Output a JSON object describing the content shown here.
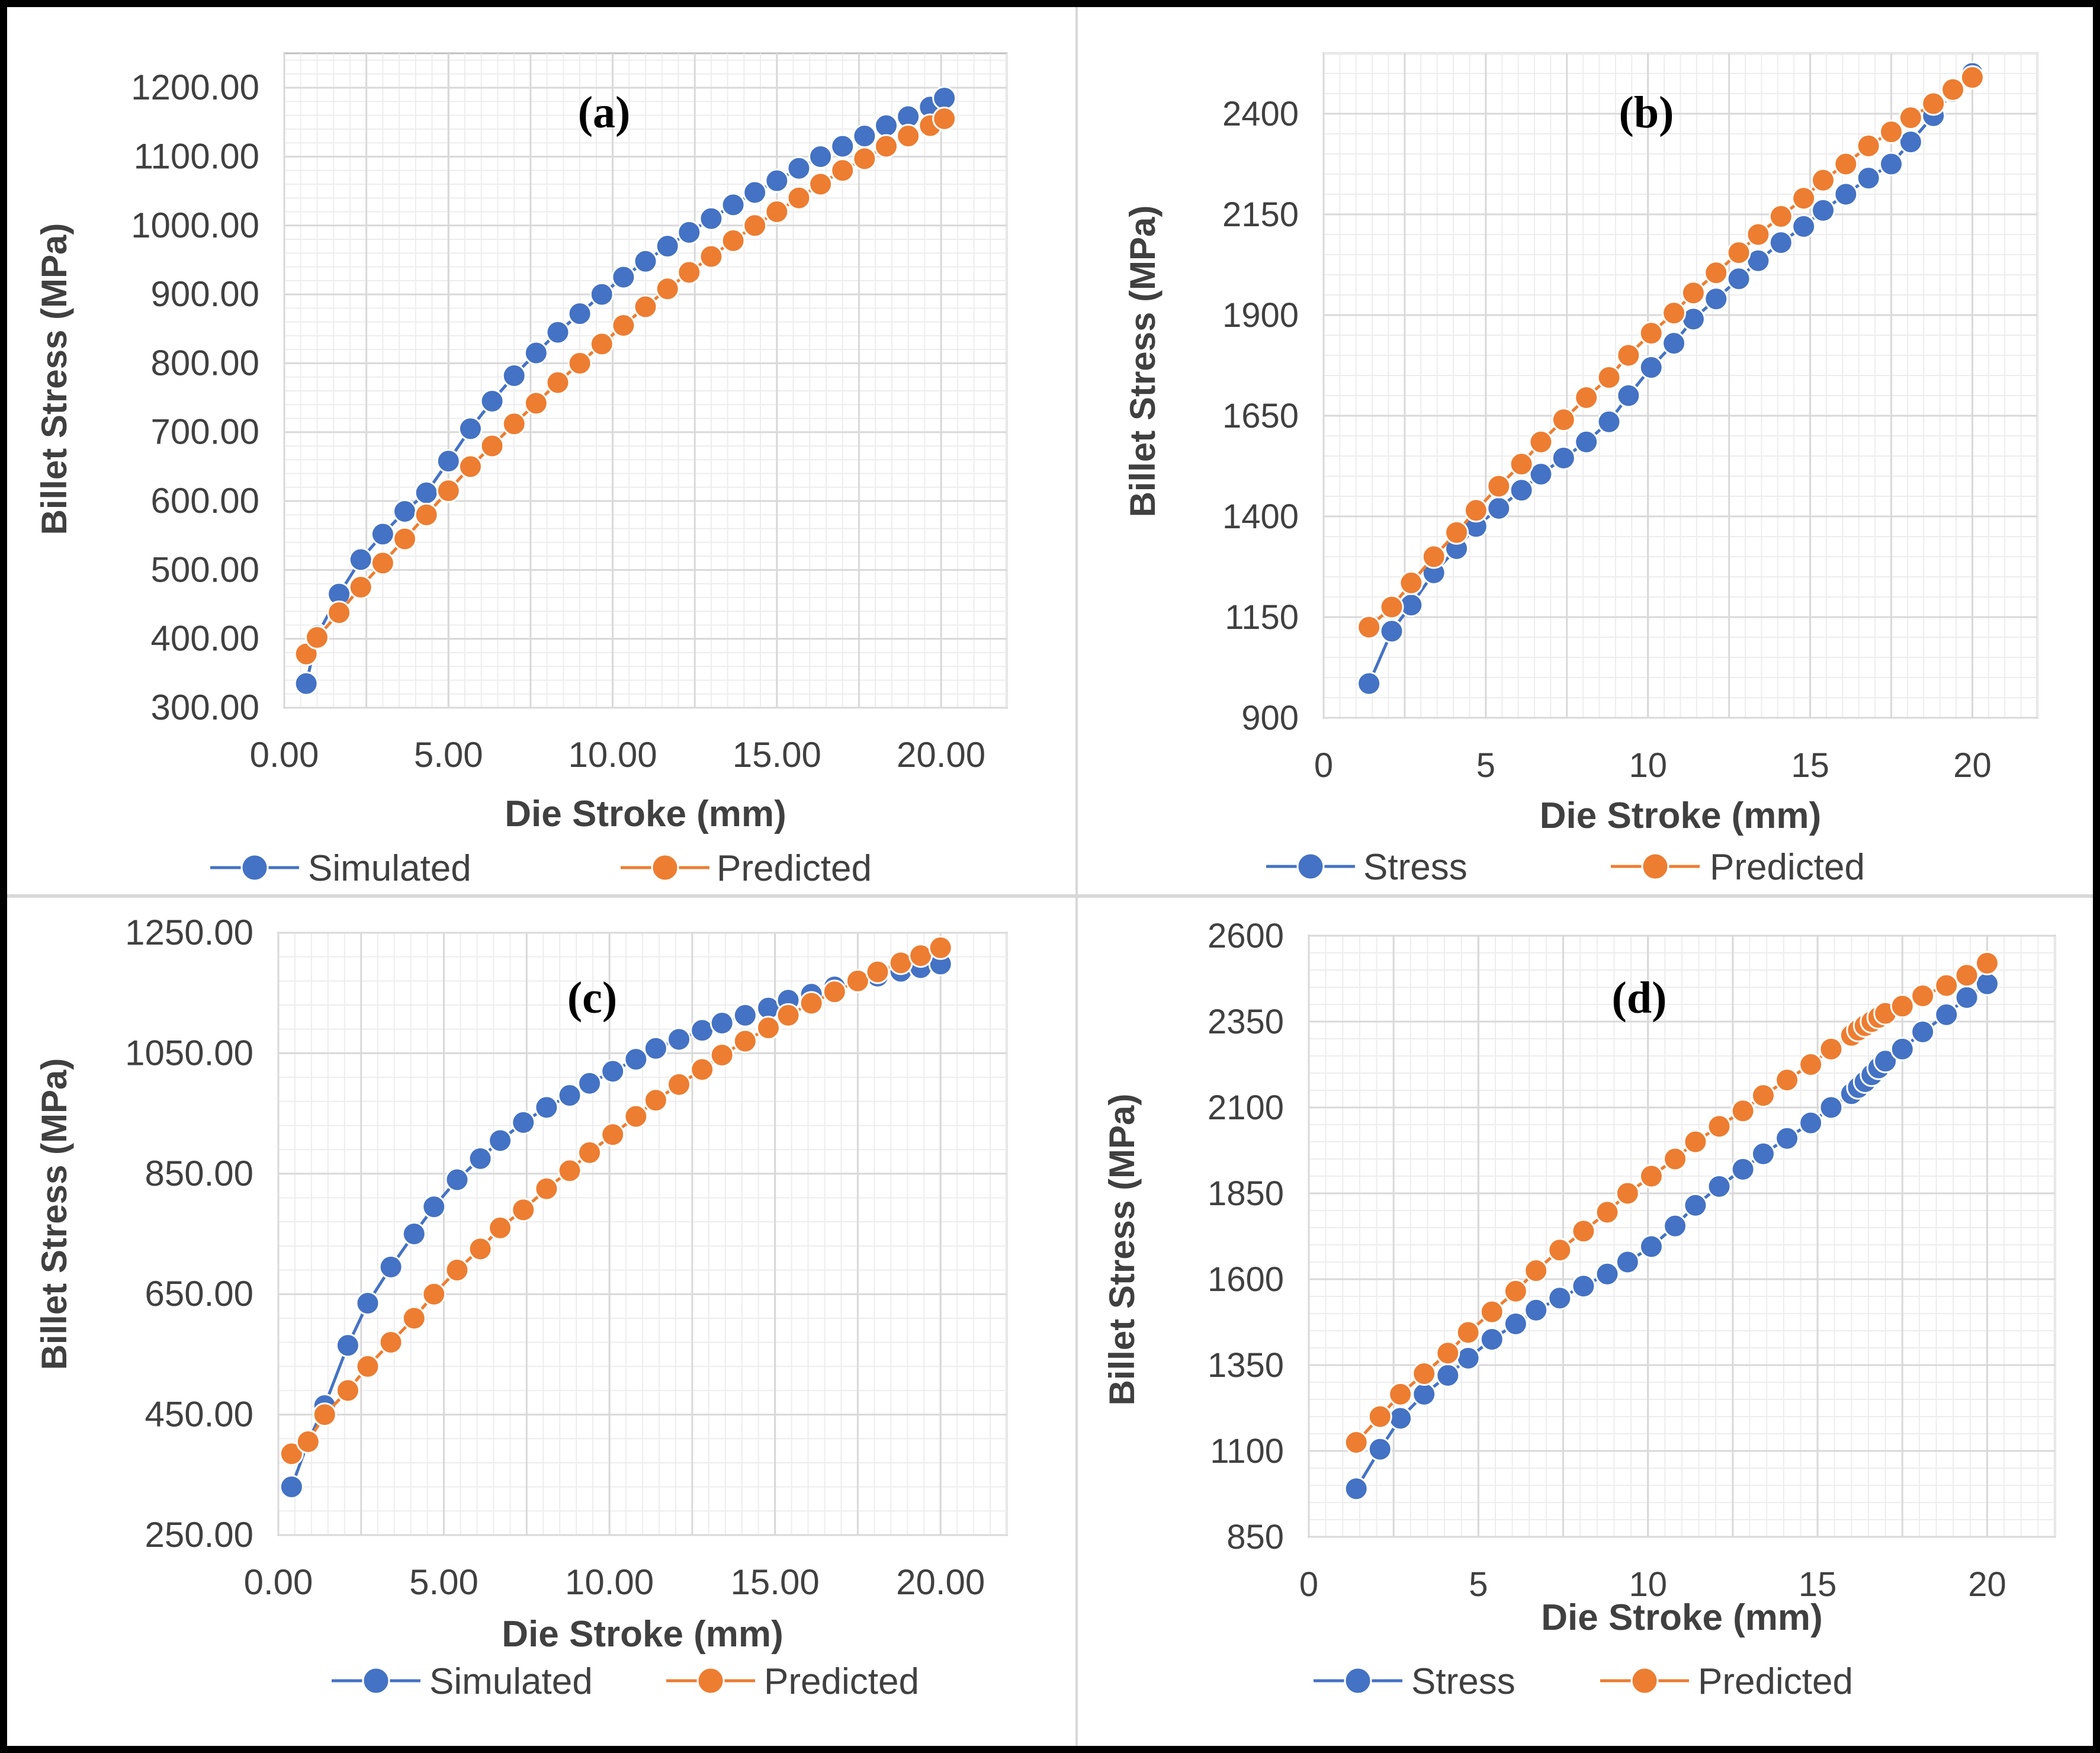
{
  "colors": {
    "series1": "#4472C4",
    "series2": "#ED7D31",
    "grid": "#D9D9D9",
    "text": "#404040"
  },
  "chart_data": [
    {
      "type": "line",
      "panel_label": "(a)",
      "xlabel": "Die Stroke (mm)",
      "ylabel": "Billet Stress (MPa)",
      "xlim": [
        0,
        22
      ],
      "ylim": [
        300,
        1250
      ],
      "xticks": [
        0,
        5,
        10,
        15,
        20
      ],
      "xtick_labels": [
        "0.00",
        "5.00",
        "10.00",
        "15.00",
        "20.00"
      ],
      "yticks": [
        300,
        400,
        500,
        600,
        700,
        800,
        900,
        1000,
        1100,
        1200
      ],
      "ytick_labels": [
        "300.00",
        "400.00",
        "500.00",
        "600.00",
        "700.00",
        "800.00",
        "900.00",
        "1000.00",
        "1100.00",
        "1200.00"
      ],
      "series": [
        {
          "name": "Simulated",
          "x": [
            0.67,
            1.0,
            1.67,
            2.33,
            3.0,
            3.67,
            4.33,
            5.0,
            5.67,
            6.33,
            7.0,
            7.67,
            8.33,
            9.0,
            9.67,
            10.33,
            11.0,
            11.67,
            12.33,
            13.0,
            13.67,
            14.33,
            15.0,
            15.67,
            16.33,
            17.0,
            17.67,
            18.33,
            19.0,
            19.67,
            20.1
          ],
          "y": [
            335,
            405,
            465,
            515,
            552,
            585,
            612,
            658,
            705,
            745,
            782,
            815,
            845,
            872,
            900,
            925,
            948,
            970,
            990,
            1010,
            1030,
            1048,
            1065,
            1083,
            1100,
            1115,
            1130,
            1145,
            1158,
            1172,
            1185
          ]
        },
        {
          "name": "Predicted",
          "x": [
            0.67,
            1.0,
            1.67,
            2.33,
            3.0,
            3.67,
            4.33,
            5.0,
            5.67,
            6.33,
            7.0,
            7.67,
            8.33,
            9.0,
            9.67,
            10.33,
            11.0,
            11.67,
            12.33,
            13.0,
            13.67,
            14.33,
            15.0,
            15.67,
            16.33,
            17.0,
            17.67,
            18.33,
            19.0,
            19.67,
            20.1
          ],
          "y": [
            378,
            402,
            438,
            475,
            510,
            545,
            580,
            615,
            650,
            680,
            712,
            742,
            772,
            800,
            828,
            855,
            882,
            908,
            932,
            955,
            978,
            1000,
            1020,
            1040,
            1060,
            1080,
            1097,
            1115,
            1130,
            1145,
            1155
          ]
        }
      ]
    },
    {
      "type": "line",
      "panel_label": "(b)",
      "xlabel": "Die Stroke (mm)",
      "ylabel": "Billet Stress (MPa)",
      "xlim": [
        0,
        22
      ],
      "ylim": [
        900,
        2550
      ],
      "xticks": [
        0,
        5,
        10,
        15,
        20
      ],
      "xtick_labels": [
        "0",
        "5",
        "10",
        "15",
        "20"
      ],
      "yticks": [
        900,
        1150,
        1400,
        1650,
        1900,
        2150,
        2400
      ],
      "ytick_labels": [
        "900",
        "1150",
        "1400",
        "1650",
        "1900",
        "2150",
        "2400"
      ],
      "series": [
        {
          "name": "Stress",
          "x": [
            1.4,
            2.1,
            2.7,
            3.4,
            4.1,
            4.7,
            5.4,
            6.1,
            6.7,
            7.4,
            8.1,
            8.8,
            9.4,
            10.1,
            10.8,
            11.4,
            12.1,
            12.8,
            13.4,
            14.1,
            14.8,
            15.4,
            16.1,
            16.8,
            17.5,
            18.1,
            18.8,
            19.4,
            20.0
          ],
          "y": [
            985,
            1115,
            1180,
            1260,
            1320,
            1375,
            1420,
            1465,
            1505,
            1545,
            1585,
            1635,
            1700,
            1770,
            1830,
            1890,
            1940,
            1990,
            2035,
            2080,
            2120,
            2160,
            2200,
            2240,
            2275,
            2330,
            2395,
            2455,
            2500
          ]
        },
        {
          "name": "Predicted",
          "x": [
            1.4,
            2.1,
            2.7,
            3.4,
            4.1,
            4.7,
            5.4,
            6.1,
            6.7,
            7.4,
            8.1,
            8.8,
            9.4,
            10.1,
            10.8,
            11.4,
            12.1,
            12.8,
            13.4,
            14.1,
            14.8,
            15.4,
            16.1,
            16.8,
            17.5,
            18.1,
            18.8,
            19.4,
            20.0
          ],
          "y": [
            1125,
            1175,
            1235,
            1300,
            1360,
            1415,
            1475,
            1530,
            1585,
            1640,
            1695,
            1745,
            1800,
            1855,
            1905,
            1955,
            2005,
            2055,
            2100,
            2145,
            2190,
            2235,
            2275,
            2320,
            2355,
            2390,
            2425,
            2460,
            2490
          ]
        }
      ]
    },
    {
      "type": "line",
      "panel_label": "(c)",
      "xlabel": "Die Stroke (mm)",
      "ylabel": "Billet Stress (MPa)",
      "xlim": [
        0,
        22
      ],
      "ylim": [
        250,
        1250
      ],
      "xticks": [
        0,
        5,
        10,
        15,
        20
      ],
      "xtick_labels": [
        "0.00",
        "5.00",
        "10.00",
        "15.00",
        "20.00"
      ],
      "yticks": [
        250,
        450,
        650,
        850,
        1050,
        1250
      ],
      "ytick_labels": [
        "250.00",
        "450.00",
        "650.00",
        "850.00",
        "1050.00",
        "1250.00"
      ],
      "series": [
        {
          "name": "Simulated",
          "x": [
            0.4,
            0.9,
            1.4,
            2.1,
            2.7,
            3.4,
            4.1,
            4.7,
            5.4,
            6.1,
            6.7,
            7.4,
            8.1,
            8.8,
            9.4,
            10.1,
            10.8,
            11.4,
            12.1,
            12.8,
            13.4,
            14.1,
            14.8,
            15.4,
            16.1,
            16.8,
            17.5,
            18.1,
            18.8,
            19.4,
            20.0
          ],
          "y": [
            330,
            405,
            465,
            565,
            635,
            695,
            750,
            795,
            840,
            875,
            905,
            935,
            960,
            980,
            1000,
            1020,
            1040,
            1058,
            1073,
            1088,
            1100,
            1113,
            1125,
            1138,
            1148,
            1160,
            1170,
            1178,
            1186,
            1192,
            1198
          ]
        },
        {
          "name": "Predicted",
          "x": [
            0.4,
            0.9,
            1.4,
            2.1,
            2.7,
            3.4,
            4.1,
            4.7,
            5.4,
            6.1,
            6.7,
            7.4,
            8.1,
            8.8,
            9.4,
            10.1,
            10.8,
            11.4,
            12.1,
            12.8,
            13.4,
            14.1,
            14.8,
            15.4,
            16.1,
            16.8,
            17.5,
            18.1,
            18.8,
            19.4,
            20.0
          ],
          "y": [
            385,
            405,
            450,
            490,
            530,
            570,
            610,
            650,
            690,
            725,
            760,
            790,
            825,
            855,
            885,
            915,
            945,
            972,
            998,
            1023,
            1047,
            1070,
            1092,
            1113,
            1133,
            1152,
            1170,
            1185,
            1200,
            1212,
            1225
          ]
        }
      ]
    },
    {
      "type": "line",
      "panel_label": "(d)",
      "xlabel": "Die Stroke (mm)",
      "ylabel": "Billet Stress (MPa)",
      "xlim": [
        0,
        22
      ],
      "ylim": [
        850,
        2600
      ],
      "xticks": [
        0,
        5,
        10,
        15,
        20
      ],
      "xtick_labels": [
        "0",
        "5",
        "10",
        "15",
        "20"
      ],
      "yticks": [
        850,
        1100,
        1350,
        1600,
        1850,
        2100,
        2350,
        2600
      ],
      "ytick_labels": [
        "850",
        "1100",
        "1350",
        "1600",
        "1850",
        "2100",
        "2350",
        "2600"
      ],
      "series": [
        {
          "name": "Stress",
          "x": [
            1.4,
            2.1,
            2.7,
            3.4,
            4.1,
            4.7,
            5.4,
            6.1,
            6.7,
            7.4,
            8.1,
            8.8,
            9.4,
            10.1,
            10.8,
            11.4,
            12.1,
            12.8,
            13.4,
            14.1,
            14.8,
            15.4,
            16.0,
            16.2,
            16.4,
            16.6,
            16.8,
            17.0,
            17.5,
            18.1,
            18.8,
            19.4,
            20.0
          ],
          "y": [
            990,
            1105,
            1195,
            1265,
            1320,
            1370,
            1425,
            1470,
            1510,
            1545,
            1580,
            1615,
            1650,
            1695,
            1755,
            1815,
            1870,
            1920,
            1965,
            2010,
            2055,
            2100,
            2140,
            2158,
            2175,
            2195,
            2215,
            2235,
            2270,
            2320,
            2370,
            2420,
            2460
          ]
        },
        {
          "name": "Predicted",
          "x": [
            1.4,
            2.1,
            2.7,
            3.4,
            4.1,
            4.7,
            5.4,
            6.1,
            6.7,
            7.4,
            8.1,
            8.8,
            9.4,
            10.1,
            10.8,
            11.4,
            12.1,
            12.8,
            13.4,
            14.1,
            14.8,
            15.4,
            16.0,
            16.2,
            16.4,
            16.6,
            16.8,
            17.0,
            17.5,
            18.1,
            18.8,
            19.4,
            20.0
          ],
          "y": [
            1125,
            1200,
            1265,
            1325,
            1385,
            1445,
            1505,
            1565,
            1625,
            1685,
            1740,
            1795,
            1850,
            1900,
            1950,
            2000,
            2045,
            2090,
            2135,
            2180,
            2225,
            2270,
            2310,
            2325,
            2338,
            2350,
            2362,
            2374,
            2395,
            2425,
            2455,
            2485,
            2520
          ]
        }
      ]
    }
  ]
}
